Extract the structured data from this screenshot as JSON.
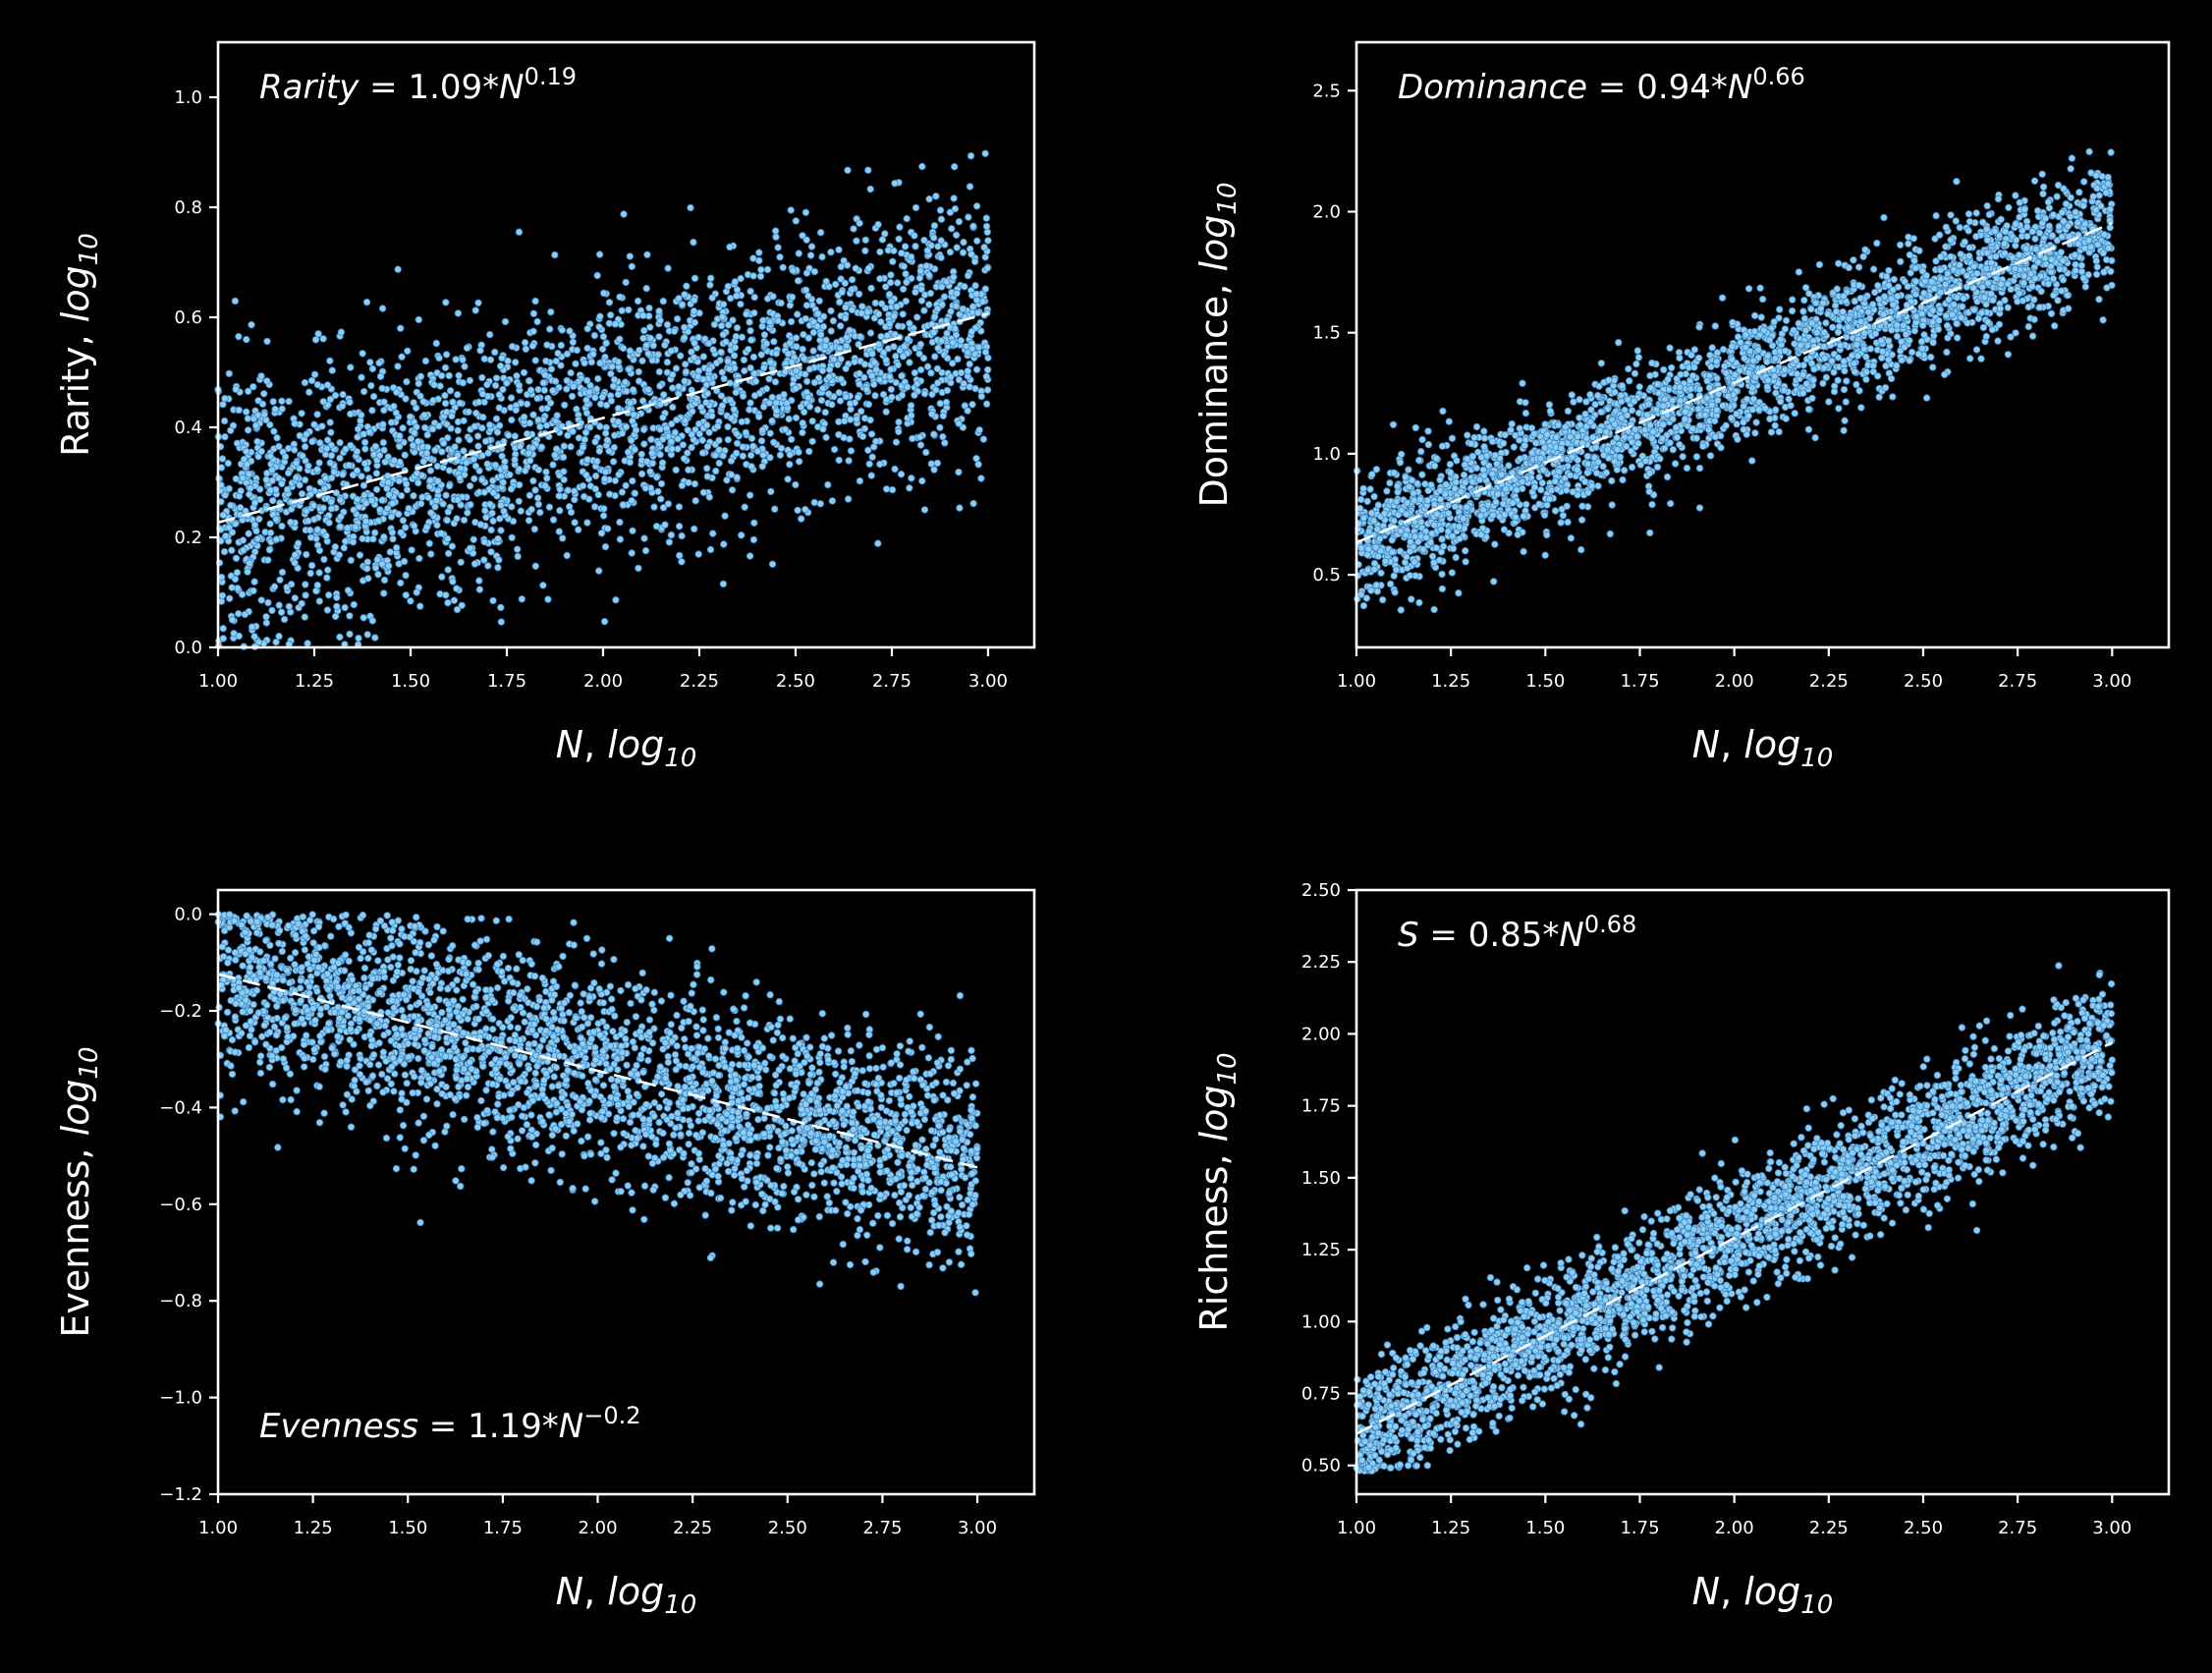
{
  "colors": {
    "background": "#000000",
    "foreground": "#ffffff",
    "points": "#87cefa",
    "point_edge": "#4682b4",
    "fit_line": "#ffffff"
  },
  "chart_data": [
    {
      "id": "rarity",
      "type": "scatter",
      "xlabel": "N, log10",
      "ylabel": "Rarity, log10",
      "xlim": [
        1.0,
        3.12
      ],
      "ylim": [
        0.0,
        1.1
      ],
      "xticks": [
        "1.00",
        "1.25",
        "1.50",
        "1.75",
        "2.00",
        "2.25",
        "2.50",
        "2.75",
        "3.00"
      ],
      "yticks": [
        "0.0",
        "0.2",
        "0.4",
        "0.6",
        "0.8",
        "1.0"
      ],
      "annotation": {
        "label": "Rarity",
        "eq": " = 1.09*N",
        "exp": "0.19",
        "position": "top-left"
      },
      "fit": {
        "slope": 0.19,
        "intercept": 0.037,
        "x": [
          1.0,
          3.0
        ]
      },
      "points": {
        "n": 3000,
        "x_range": [
          1.0,
          3.0
        ],
        "noise_sd": 0.12,
        "y_min": 0.0,
        "y_max": 0.9,
        "seed": 11
      },
      "grid": false
    },
    {
      "id": "dominance",
      "type": "scatter",
      "xlabel": "N, log10",
      "ylabel": "Dominance, log10",
      "xlim": [
        1.0,
        3.15
      ],
      "ylim": [
        0.2,
        2.7
      ],
      "xticks": [
        "1.00",
        "1.25",
        "1.50",
        "1.75",
        "2.00",
        "2.25",
        "2.50",
        "2.75",
        "3.00"
      ],
      "yticks": [
        "0.5",
        "1.0",
        "1.5",
        "2.0",
        "2.5"
      ],
      "annotation": {
        "label": "Dominance",
        "eq": " = 0.94*N",
        "exp": "0.66",
        "position": "top-left"
      },
      "fit": {
        "slope": 0.66,
        "intercept": -0.027,
        "x": [
          1.0,
          3.0
        ]
      },
      "points": {
        "n": 3000,
        "x_range": [
          1.0,
          3.0
        ],
        "noise_sd": 0.13,
        "y_min": 0.3,
        "y_max": 2.35,
        "seed": 23
      },
      "grid": false
    },
    {
      "id": "evenness",
      "type": "scatter",
      "xlabel": "N, log10",
      "ylabel": "Evenness, log10",
      "xlim": [
        1.0,
        3.15
      ],
      "ylim": [
        -1.2,
        0.05
      ],
      "xticks": [
        "1.00",
        "1.25",
        "1.50",
        "1.75",
        "2.00",
        "2.25",
        "2.50",
        "2.75",
        "3.00"
      ],
      "yticks": [
        "0.0",
        "−0.2",
        "−0.4",
        "−0.6",
        "−0.8",
        "−1.0",
        "−1.2"
      ],
      "annotation": {
        "label": "Evenness",
        "eq": " = 1.19*N",
        "exp": "−0.2",
        "position": "bottom-left"
      },
      "fit": {
        "slope": -0.2,
        "intercept": 0.076,
        "x": [
          1.0,
          3.0
        ]
      },
      "points": {
        "n": 3000,
        "x_range": [
          1.0,
          3.0
        ],
        "noise_sd": 0.11,
        "y_min": -0.91,
        "y_max": 0.0,
        "seed": 37
      },
      "grid": false
    },
    {
      "id": "richness",
      "type": "scatter",
      "xlabel": "N, log10",
      "ylabel": "Richness, log10",
      "xlim": [
        1.0,
        3.15
      ],
      "ylim": [
        0.4,
        2.5
      ],
      "xticks": [
        "1.00",
        "1.25",
        "1.50",
        "1.75",
        "2.00",
        "2.25",
        "2.50",
        "2.75",
        "3.00"
      ],
      "yticks": [
        "0.50",
        "0.75",
        "1.00",
        "1.25",
        "1.50",
        "1.75",
        "2.00",
        "2.25",
        "2.50"
      ],
      "annotation": {
        "label": "S",
        "eq": " = 0.85*N",
        "exp": "0.68",
        "position": "top-left"
      },
      "fit": {
        "slope": 0.68,
        "intercept": -0.07,
        "x": [
          1.0,
          3.0
        ]
      },
      "points": {
        "n": 3000,
        "x_range": [
          1.0,
          3.0
        ],
        "noise_sd": 0.11,
        "y_min": 0.48,
        "y_max": 2.31,
        "seed": 53
      },
      "grid": false
    }
  ]
}
